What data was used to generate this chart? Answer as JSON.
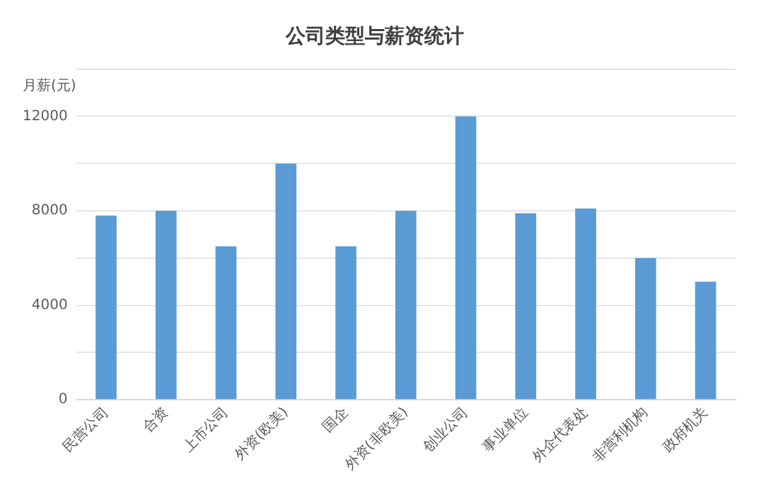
{
  "chart_data": {
    "type": "bar",
    "title": "公司类型与薪资统计",
    "ylabel": "月薪(元)",
    "categories": [
      "民营公司",
      "合资",
      "上市公司",
      "外资(欧美)",
      "国企",
      "外资(非欧美)",
      "创业公司",
      "事业单位",
      "外企代表处",
      "非营利机构",
      "政府机关"
    ],
    "values": [
      7800,
      8000,
      6500,
      10000,
      6500,
      8000,
      12000,
      7900,
      8100,
      6000,
      5000
    ],
    "color": "#5b9bd5",
    "ylim": [
      0,
      14000
    ],
    "yticks": [
      0,
      {
        "value": 2000,
        "label": null
      },
      4000,
      {
        "value": 6000,
        "label": null
      },
      8000,
      {
        "value": 10000,
        "label": null
      },
      12000,
      {
        "value": 14000,
        "label": null
      }
    ],
    "grid": "y",
    "legend": false
  }
}
